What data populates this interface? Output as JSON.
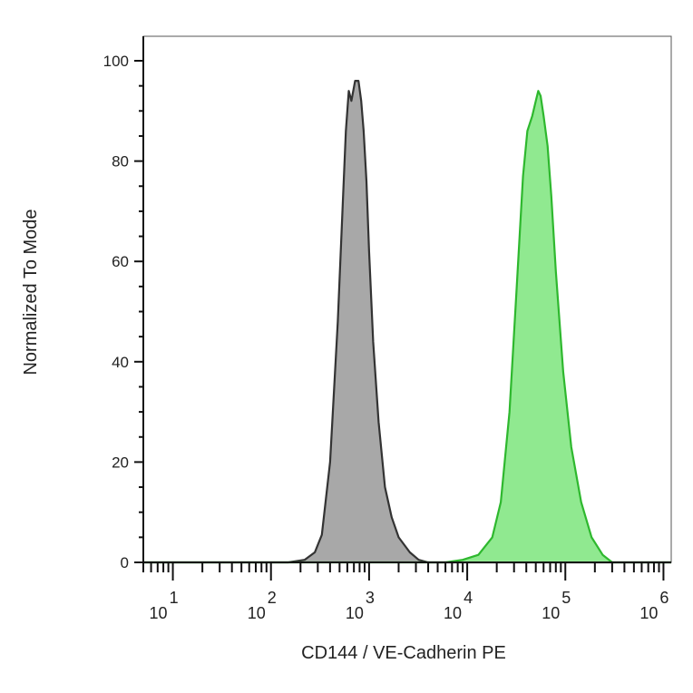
{
  "chart_data": {
    "type": "area",
    "xlabel": "CD144 / VE-Cadherin PE",
    "ylabel": "Normalized To Mode",
    "xscale": "log",
    "xlim": [
      5,
      1200000
    ],
    "ylim": [
      0,
      105
    ],
    "grid": false,
    "yticks": [
      {
        "value": 0,
        "label": "0"
      },
      {
        "value": 20,
        "label": "20"
      },
      {
        "value": 40,
        "label": "40"
      },
      {
        "value": 60,
        "label": "60"
      },
      {
        "value": 80,
        "label": "80"
      },
      {
        "value": 100,
        "label": "100"
      }
    ],
    "xticks": [
      {
        "value": 10,
        "base": "10",
        "exp": "1"
      },
      {
        "value": 100,
        "base": "10",
        "exp": "2"
      },
      {
        "value": 1000,
        "base": "10",
        "exp": "3"
      },
      {
        "value": 10000,
        "base": "10",
        "exp": "4"
      },
      {
        "value": 100000,
        "base": "10",
        "exp": "5"
      },
      {
        "value": 1000000,
        "base": "10",
        "exp": "6"
      }
    ],
    "series": [
      {
        "fill": "#a8a8a8",
        "stroke": "#333333",
        "points": [
          [
            5,
            0
          ],
          [
            150,
            0
          ],
          [
            220,
            0.5
          ],
          [
            280,
            2
          ],
          [
            330,
            5.5
          ],
          [
            400,
            20
          ],
          [
            480,
            48
          ],
          [
            540,
            72
          ],
          [
            580,
            86
          ],
          [
            620,
            94
          ],
          [
            660,
            92
          ],
          [
            720,
            96
          ],
          [
            780,
            96
          ],
          [
            830,
            92
          ],
          [
            880,
            86
          ],
          [
            940,
            76
          ],
          [
            1000,
            62
          ],
          [
            1100,
            44
          ],
          [
            1250,
            28
          ],
          [
            1450,
            15
          ],
          [
            1700,
            9
          ],
          [
            2000,
            5
          ],
          [
            2600,
            2
          ],
          [
            3200,
            0.5
          ],
          [
            4000,
            0
          ],
          [
            1200000,
            0
          ]
        ]
      },
      {
        "fill": "#90e990",
        "stroke": "#2eb82e",
        "points": [
          [
            5,
            0
          ],
          [
            6000,
            0
          ],
          [
            9000,
            0.5
          ],
          [
            13000,
            1.5
          ],
          [
            18000,
            5
          ],
          [
            22000,
            12
          ],
          [
            27000,
            30
          ],
          [
            32000,
            55
          ],
          [
            37000,
            77
          ],
          [
            41000,
            86
          ],
          [
            46000,
            89
          ],
          [
            50000,
            92
          ],
          [
            53000,
            94
          ],
          [
            56000,
            93
          ],
          [
            60000,
            89
          ],
          [
            66000,
            83
          ],
          [
            72000,
            73
          ],
          [
            80000,
            58
          ],
          [
            95000,
            38
          ],
          [
            115000,
            23
          ],
          [
            145000,
            12
          ],
          [
            185000,
            5
          ],
          [
            240000,
            1.5
          ],
          [
            300000,
            0
          ],
          [
            1200000,
            0
          ]
        ]
      }
    ]
  }
}
